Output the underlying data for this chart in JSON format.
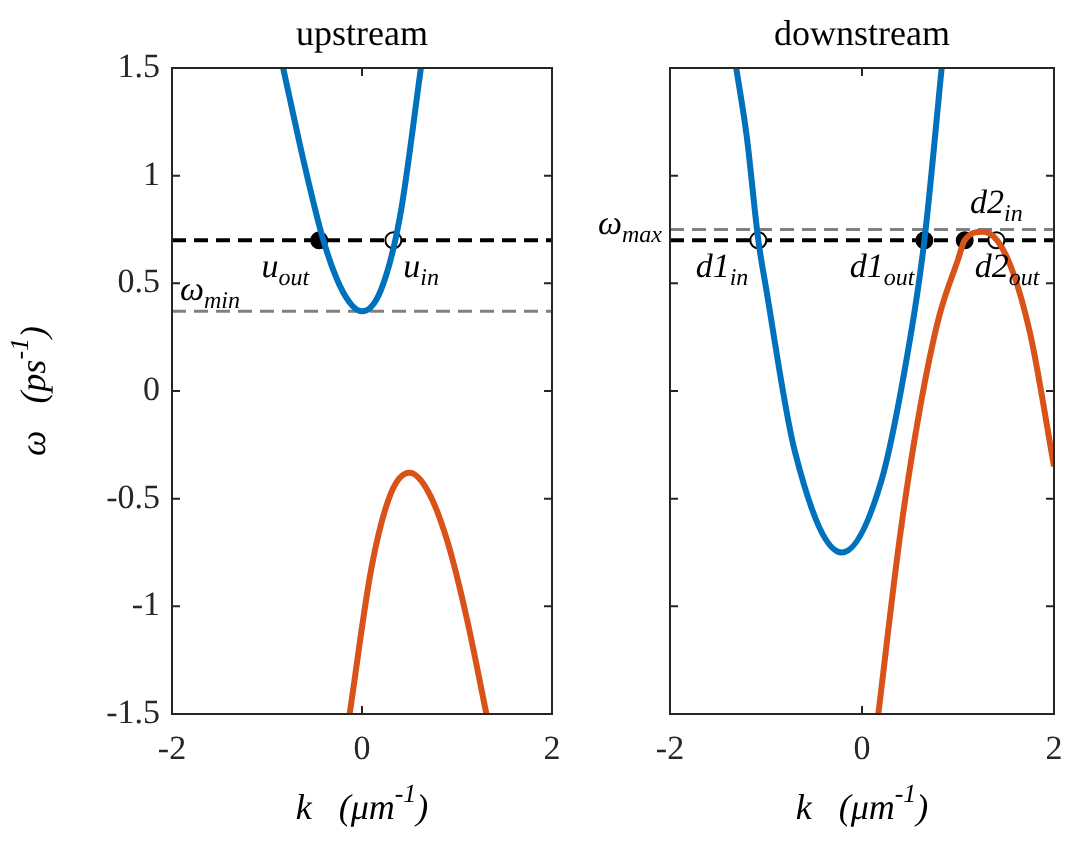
{
  "chart_data": [
    {
      "type": "line",
      "title": "upstream",
      "xlabel": "k   (μm$^{-1}$)",
      "ylabel": "ω   (ps$^{-1}$)",
      "xlim": [
        -2,
        2
      ],
      "xticks": [
        -2,
        0,
        2
      ],
      "ylim": [
        -1.5,
        1.5
      ],
      "yticks": [
        -1.5,
        -1,
        -0.5,
        0,
        0.5,
        1,
        1.5
      ],
      "grid": false,
      "legend": false,
      "series": [
        {
          "color": "#0072bd",
          "x": [
            -0.83,
            -0.6,
            -0.4,
            -0.2,
            0,
            0.2,
            0.4,
            0.62
          ],
          "values": [
            1.5,
            1.04,
            0.69,
            0.46,
            0.37,
            0.47,
            0.81,
            1.5
          ]
        },
        {
          "color": "#d95319",
          "x": [
            -0.13,
            0.1,
            0.3,
            0.5,
            0.7,
            0.9,
            1.1,
            1.31
          ],
          "values": [
            -1.5,
            -0.82,
            -0.48,
            -0.38,
            -0.47,
            -0.7,
            -1.05,
            -1.5
          ]
        },
        {
          "type": "scatter",
          "marker": "circle",
          "color": "#000000",
          "x": [
            -0.45
          ],
          "values": [
            0.7
          ]
        },
        {
          "type": "scatter",
          "marker": "circle",
          "color": "#ffffff",
          "x": [
            0.33
          ],
          "values": [
            0.7
          ]
        }
      ],
      "ref_lines": [
        {
          "axis": "y",
          "value": 0.37,
          "label": "ω$_{min}$",
          "color": "#808080",
          "line_style": "dashed"
        },
        {
          "axis": "y",
          "value": 0.7,
          "color": "#000000",
          "line_style": "dashed"
        }
      ],
      "annotations": [
        {
          "text": "u$_{out}$",
          "x": -0.45,
          "y": 0.7
        },
        {
          "text": "u$_{in}$",
          "x": 0.33,
          "y": 0.7
        }
      ]
    },
    {
      "type": "line",
      "title": "downstream",
      "xlabel": "k   (μm$^{-1}$)",
      "xlim": [
        -2,
        2
      ],
      "xticks": [
        -2,
        0,
        2
      ],
      "ylim": [
        -1.5,
        1.5
      ],
      "yticks": [
        -1.5,
        -1,
        -0.5,
        0,
        0.5,
        1,
        1.5
      ],
      "tick_labels": "x",
      "grid": false,
      "legend": false,
      "series": [
        {
          "color": "#0072bd",
          "x": [
            -1.31,
            -1.2,
            -1.08,
            -1.0,
            -0.7,
            -0.21,
            0.2,
            0.5,
            0.65,
            0.83
          ],
          "values": [
            1.5,
            1.18,
            0.7,
            0.48,
            -0.28,
            -0.75,
            -0.42,
            0.24,
            0.7,
            1.5
          ]
        },
        {
          "color": "#d95319",
          "x": [
            0.17,
            0.4,
            0.6,
            0.8,
            1.0,
            1.07,
            1.26,
            1.5,
            1.75,
            2.0
          ],
          "values": [
            -1.5,
            -0.66,
            -0.09,
            0.34,
            0.61,
            0.7,
            0.74,
            0.63,
            0.27,
            -0.35
          ]
        },
        {
          "type": "scatter",
          "marker": "circle",
          "color": "#000000",
          "x": [
            0.65,
            1.07
          ],
          "values": [
            0.7,
            0.7
          ]
        },
        {
          "type": "scatter",
          "marker": "circle",
          "color": "#ffffff",
          "x": [
            -1.08,
            1.4
          ],
          "values": [
            0.7,
            0.7
          ]
        }
      ],
      "ref_lines": [
        {
          "axis": "y",
          "value": 0.75,
          "label": "ω$_{max}$",
          "color": "#808080",
          "line_style": "dashed"
        },
        {
          "axis": "y",
          "value": 0.7,
          "color": "#000000",
          "line_style": "dashed"
        }
      ],
      "annotations": [
        {
          "text": "d1$_{in}$",
          "x": -1.08,
          "y": 0.7
        },
        {
          "text": "d1$_{out}$",
          "x": 0.65,
          "y": 0.7
        },
        {
          "text": "d2$_{in}$",
          "x": 1.4,
          "y": 0.7
        },
        {
          "text": "d2$_{out}$",
          "x": 1.07,
          "y": 0.7
        }
      ]
    }
  ]
}
